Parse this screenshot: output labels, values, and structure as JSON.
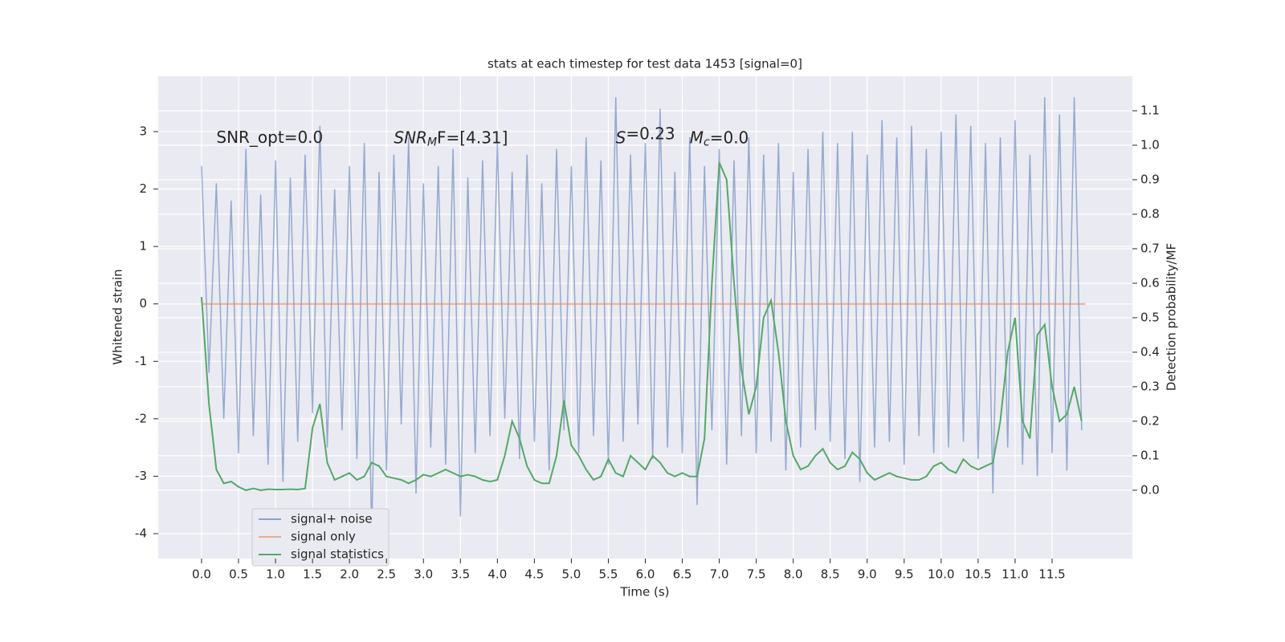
{
  "chart_data": {
    "type": "line",
    "title": "stats at each timestep for test data 1453 [signal=0]",
    "x_label": "Time (s)",
    "y_label": "Whitened strain",
    "y2_label": "Detection probability/MF",
    "annotations": [
      {
        "text": "SNR_opt=0.0",
        "x": 0.2,
        "y": 2.88
      },
      {
        "parts": [
          "SNR",
          "M",
          "F=[4.31]"
        ],
        "x": 2.6,
        "y": 2.88
      },
      {
        "parts": [
          "S",
          "=0.23"
        ],
        "x": 5.6,
        "y": 2.88
      },
      {
        "parts": [
          "M",
          "c",
          "=0.0"
        ],
        "x": 6.6,
        "y": 2.88
      }
    ],
    "x": [
      0,
      0.1,
      0.2,
      0.3,
      0.4,
      0.5,
      0.6,
      0.7,
      0.8,
      0.9,
      1,
      1.1,
      1.2,
      1.3,
      1.4,
      1.5,
      1.6,
      1.7,
      1.8,
      1.9,
      2,
      2.1,
      2.2,
      2.3,
      2.4,
      2.5,
      2.6,
      2.7,
      2.8,
      2.9,
      3,
      3.1,
      3.2,
      3.3,
      3.4,
      3.5,
      3.6,
      3.7,
      3.8,
      3.9,
      4,
      4.1,
      4.2,
      4.3,
      4.4,
      4.5,
      4.6,
      4.7,
      4.8,
      4.9,
      5,
      5.1,
      5.2,
      5.3,
      5.4,
      5.5,
      5.6,
      5.7,
      5.8,
      5.9,
      6,
      6.1,
      6.2,
      6.3,
      6.4,
      6.5,
      6.6,
      6.7,
      6.8,
      6.9,
      7,
      7.1,
      7.2,
      7.3,
      7.4,
      7.5,
      7.6,
      7.7,
      7.8,
      7.9,
      8,
      8.1,
      8.2,
      8.3,
      8.4,
      8.5,
      8.6,
      8.7,
      8.8,
      8.9,
      9,
      9.1,
      9.2,
      9.3,
      9.4,
      9.5,
      9.6,
      9.7,
      9.8,
      9.9,
      10,
      10.1,
      10.2,
      10.3,
      10.4,
      10.5,
      10.6,
      10.7,
      10.8,
      10.9,
      11,
      11.1,
      11.2,
      11.3,
      11.4,
      11.5,
      11.6,
      11.7,
      11.8,
      11.9
    ],
    "series": [
      {
        "name": "signal+ noise",
        "color": "#4c72b0",
        "values": [
          2.4,
          -1.2,
          2.1,
          -2.0,
          1.8,
          -2.6,
          2.7,
          -2.3,
          1.9,
          -2.8,
          2.5,
          -3.1,
          2.2,
          -2.4,
          2.6,
          -1.9,
          3.1,
          -2.5,
          2.0,
          -2.2,
          2.4,
          -2.7,
          2.8,
          -4.0,
          2.3,
          -2.9,
          2.6,
          -2.1,
          2.9,
          -3.3,
          2.1,
          -2.5,
          2.4,
          -2.8,
          2.7,
          -3.7,
          2.2,
          -2.6,
          2.5,
          -2.3,
          2.8,
          -2.0,
          2.3,
          -2.7,
          2.6,
          -2.4,
          2.1,
          -2.9,
          2.7,
          -2.2,
          2.4,
          -2.6,
          2.9,
          -2.3,
          2.5,
          -2.8,
          3.6,
          -2.4,
          2.6,
          -2.1,
          2.8,
          -2.7,
          3.4,
          -2.5,
          2.3,
          -2.6,
          2.9,
          -3.5,
          2.4,
          -2.2,
          2.7,
          -2.8,
          2.5,
          -2.3,
          2.9,
          -2.6,
          2.6,
          -2.4,
          2.8,
          -2.9,
          2.3,
          -2.5,
          2.7,
          -2.2,
          3.0,
          -2.4,
          2.8,
          -2.7,
          3.0,
          -3.1,
          2.6,
          -2.5,
          3.2,
          -2.4,
          2.9,
          -2.8,
          3.1,
          -2.3,
          2.7,
          -2.6,
          3.0,
          -2.5,
          3.3,
          -2.4,
          3.1,
          -2.7,
          2.8,
          -3.3,
          2.9,
          -2.5,
          3.2,
          -2.8,
          2.6,
          -3.0,
          3.6,
          -2.6,
          3.3,
          -2.9,
          3.6,
          -2.2
        ]
      },
      {
        "name": "signal only",
        "color": "#dd8452",
        "x": [
          0,
          11.95
        ],
        "values": [
          0,
          0
        ]
      },
      {
        "name": "signal statistics",
        "color": "#55a868",
        "axis": "y2",
        "values": [
          0.56,
          0.25,
          0.06,
          0.02,
          0.025,
          0.01,
          0.0,
          0.005,
          0.0,
          0.003,
          0.002,
          0.002,
          0.003,
          0.002,
          0.005,
          0.18,
          0.25,
          0.08,
          0.03,
          0.04,
          0.05,
          0.03,
          0.04,
          0.08,
          0.07,
          0.04,
          0.035,
          0.03,
          0.02,
          0.03,
          0.045,
          0.04,
          0.05,
          0.06,
          0.05,
          0.04,
          0.045,
          0.04,
          0.03,
          0.025,
          0.03,
          0.1,
          0.2,
          0.15,
          0.07,
          0.03,
          0.02,
          0.02,
          0.1,
          0.26,
          0.13,
          0.1,
          0.06,
          0.03,
          0.04,
          0.09,
          0.05,
          0.04,
          0.1,
          0.08,
          0.06,
          0.1,
          0.08,
          0.05,
          0.04,
          0.05,
          0.04,
          0.04,
          0.15,
          0.6,
          0.95,
          0.9,
          0.6,
          0.35,
          0.22,
          0.3,
          0.5,
          0.55,
          0.4,
          0.2,
          0.1,
          0.06,
          0.07,
          0.1,
          0.12,
          0.08,
          0.06,
          0.07,
          0.11,
          0.09,
          0.05,
          0.03,
          0.04,
          0.05,
          0.04,
          0.035,
          0.03,
          0.03,
          0.04,
          0.07,
          0.08,
          0.06,
          0.05,
          0.09,
          0.07,
          0.06,
          0.07,
          0.08,
          0.2,
          0.4,
          0.5,
          0.2,
          0.15,
          0.45,
          0.48,
          0.3,
          0.2,
          0.22,
          0.3,
          0.2
        ]
      }
    ],
    "xlim": [
      -0.586,
      12.586
    ],
    "xticks": [
      {
        "value": 0,
        "label": "0.0"
      },
      0.5,
      {
        "value": 1,
        "label": "1.0"
      },
      1.5,
      {
        "value": 2,
        "label": "2.0"
      },
      2.5,
      {
        "value": 3,
        "label": "3.0"
      },
      3.5,
      {
        "value": 4,
        "label": "4.0"
      },
      4.5,
      {
        "value": 5,
        "label": "5.0"
      },
      5.5,
      {
        "value": 6,
        "label": "6.0"
      },
      6.5,
      {
        "value": 7,
        "label": "7.0"
      },
      7.5,
      {
        "value": 8,
        "label": "8.0"
      },
      8.5,
      {
        "value": 9,
        "label": "9.0"
      },
      9.5,
      {
        "value": 10,
        "label": "10.0"
      },
      10.5,
      {
        "value": 11,
        "label": "11.0"
      },
      11.5
    ],
    "ylim": [
      -4.433,
      3.964
    ],
    "yticks": [
      -4,
      -3,
      -2,
      -1,
      0,
      1,
      2,
      3
    ],
    "y2lim": [
      -0.198,
      1.2
    ],
    "y2ticks": [
      {
        "value": 0,
        "label": "0.0"
      },
      0.1,
      0.2,
      0.3,
      0.4,
      0.5,
      0.6,
      0.7,
      0.8,
      0.9,
      {
        "value": 1,
        "label": "1.0"
      },
      1.1
    ],
    "grid": true,
    "legend": "lower left"
  }
}
